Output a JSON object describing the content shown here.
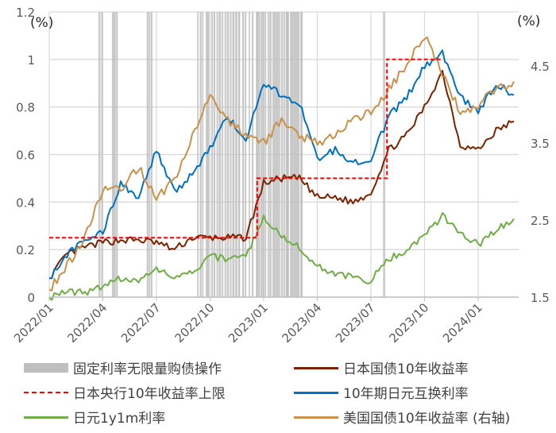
{
  "chart_data": {
    "type": "line",
    "title": "",
    "left_axis": {
      "unit_label": "(%)",
      "ticks": [
        "0",
        "0.2",
        "0.4",
        "0.6",
        "0.8",
        "1",
        "1.2"
      ],
      "ylim": [
        0,
        1.2
      ]
    },
    "right_axis": {
      "unit_label": "(%)",
      "ticks": [
        "1.5",
        "2.5",
        "3.5",
        "4.5"
      ],
      "ylim": [
        1.5,
        5.2
      ]
    },
    "x_ticks": [
      "2022/01",
      "2022/04",
      "2022/07",
      "2022/10",
      "2023/01",
      "2023/04",
      "2023/07",
      "2023/10",
      "2024/01"
    ],
    "grid": true,
    "legend_position": "bottom",
    "series": [
      {
        "name": "日本国债10年收益率",
        "color": "#7b2200",
        "axis": "left",
        "x": [
          "2022/01",
          "2022/02",
          "2022/03",
          "2022/04",
          "2022/05",
          "2022/06",
          "2022/07",
          "2022/08",
          "2022/09",
          "2022/10",
          "2022/11",
          "2022/12",
          "2023/01",
          "2023/02",
          "2023/03",
          "2023/04",
          "2023/05",
          "2023/06",
          "2023/07",
          "2023/08",
          "2023/09",
          "2023/10",
          "2023/11",
          "2023/12",
          "2024/01",
          "2024/02",
          "2024/03"
        ],
        "values": [
          0.08,
          0.18,
          0.21,
          0.23,
          0.24,
          0.24,
          0.23,
          0.2,
          0.25,
          0.25,
          0.25,
          0.25,
          0.48,
          0.5,
          0.5,
          0.42,
          0.42,
          0.4,
          0.44,
          0.62,
          0.68,
          0.8,
          0.95,
          0.64,
          0.62,
          0.7,
          0.74
        ]
      },
      {
        "name": "10年期日元互换利率",
        "color": "#0070c0",
        "axis": "left",
        "x": [
          "2022/01",
          "2022/02",
          "2022/03",
          "2022/04",
          "2022/05",
          "2022/06",
          "2022/07",
          "2022/08",
          "2022/09",
          "2022/10",
          "2022/11",
          "2022/12",
          "2023/01",
          "2023/02",
          "2023/03",
          "2023/04",
          "2023/05",
          "2023/06",
          "2023/07",
          "2023/08",
          "2023/09",
          "2023/10",
          "2023/11",
          "2023/12",
          "2024/01",
          "2024/02",
          "2024/03"
        ],
        "values": [
          0.08,
          0.18,
          0.24,
          0.27,
          0.48,
          0.42,
          0.62,
          0.44,
          0.52,
          0.63,
          0.76,
          0.66,
          0.9,
          0.85,
          0.82,
          0.58,
          0.62,
          0.57,
          0.58,
          0.76,
          0.84,
          0.97,
          1.03,
          0.84,
          0.78,
          0.9,
          0.85
        ]
      },
      {
        "name": "日元1y1m利率",
        "color": "#70ad47",
        "axis": "left",
        "x": [
          "2022/01",
          "2022/02",
          "2022/03",
          "2022/04",
          "2022/05",
          "2022/06",
          "2022/07",
          "2022/08",
          "2022/09",
          "2022/10",
          "2022/11",
          "2022/12",
          "2023/01",
          "2023/02",
          "2023/03",
          "2023/04",
          "2023/05",
          "2023/06",
          "2023/07",
          "2023/08",
          "2023/09",
          "2023/10",
          "2023/11",
          "2023/12",
          "2024/01",
          "2024/02",
          "2024/03"
        ],
        "values": [
          0.0,
          0.02,
          0.02,
          0.05,
          0.08,
          0.07,
          0.12,
          0.08,
          0.1,
          0.17,
          0.16,
          0.17,
          0.34,
          0.25,
          0.21,
          0.13,
          0.1,
          0.08,
          0.07,
          0.16,
          0.2,
          0.26,
          0.34,
          0.27,
          0.22,
          0.28,
          0.33
        ]
      },
      {
        "name": "美国国债10年收益率(右轴)",
        "color": "#c9914a",
        "axis": "right",
        "x": [
          "2022/01",
          "2022/02",
          "2022/03",
          "2022/04",
          "2022/05",
          "2022/06",
          "2022/07",
          "2022/08",
          "2022/09",
          "2022/10",
          "2022/11",
          "2022/12",
          "2023/01",
          "2023/02",
          "2023/03",
          "2023/04",
          "2023/05",
          "2023/06",
          "2023/07",
          "2023/08",
          "2023/09",
          "2023/10",
          "2023/11",
          "2023/12",
          "2024/01",
          "2024/02",
          "2024/03"
        ],
        "values": [
          1.6,
          1.9,
          2.3,
          2.9,
          2.9,
          3.2,
          2.8,
          3.0,
          3.6,
          4.1,
          3.8,
          3.6,
          3.5,
          3.8,
          3.6,
          3.5,
          3.6,
          3.8,
          3.9,
          4.2,
          4.5,
          4.9,
          4.4,
          3.9,
          4.0,
          4.2,
          4.3
        ]
      },
      {
        "name": "日本央行10年收益率上限",
        "color": "#ff0000",
        "style": "dashed",
        "axis": "left",
        "x": [
          "2022/01",
          "2022/12/20",
          "2022/12/20",
          "2023/07/28",
          "2023/07/28",
          "2023/10/31"
        ],
        "values": [
          0.25,
          0.25,
          0.5,
          0.5,
          1.0,
          1.0
        ]
      }
    ],
    "shaded_events": {
      "name": "固定利率无限量购债操作",
      "color": "#bfbfbf",
      "approx_periods": [
        "2022/04 late",
        "2022/05",
        "2022/06 mid-late",
        "2022/09-2022/10 (frequent)",
        "2022/12-2023/01 (frequent)",
        "2023/02-2023/03 (frequent)",
        "2023/07 end"
      ]
    }
  },
  "legend": {
    "items": [
      {
        "label": "固定利率无限量购债操作",
        "kind": "bar",
        "color": "#bfbfbf"
      },
      {
        "label": "日本国债10年收益率",
        "kind": "line",
        "color": "#7b2200"
      },
      {
        "label": "日本央行10年收益率上限",
        "kind": "dash",
        "color": "#ff0000"
      },
      {
        "label": "10年期日元互换利率",
        "kind": "line",
        "color": "#0070c0"
      },
      {
        "label": "日元1y1m利率",
        "kind": "line",
        "color": "#70ad47"
      },
      {
        "label": "美国国债10年收益率 (右轴)",
        "kind": "line",
        "color": "#c9914a"
      }
    ]
  }
}
